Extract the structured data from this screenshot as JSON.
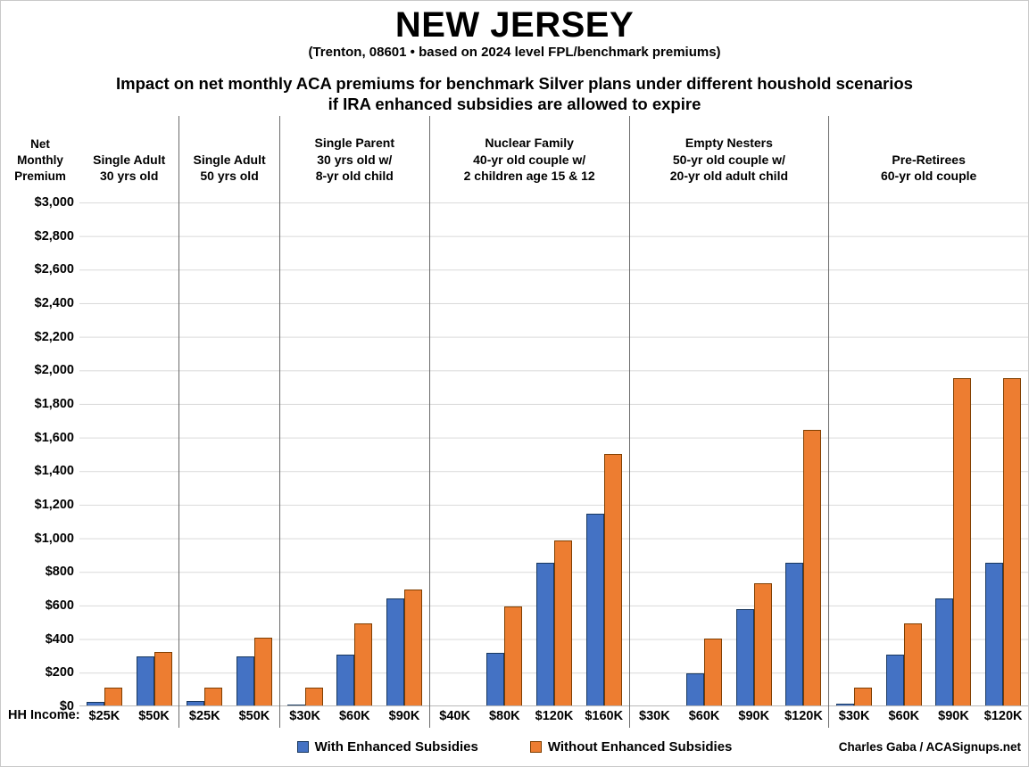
{
  "header": {
    "title": "NEW JERSEY",
    "subtitle": "(Trenton, 08601 • based on 2024 level FPL/benchmark premiums)",
    "heading_line1": "Impact on net monthly ACA premiums for benchmark Silver plans under different houshold scenarios",
    "heading_line2": "if IRA enhanced subsidies are allowed to expire"
  },
  "y_axis": {
    "title_lines": [
      "Net",
      "Monthly",
      "Premium"
    ],
    "min": 0,
    "max": 3000,
    "step": 200,
    "tick_prefix": "$"
  },
  "x_axis": {
    "label": "HH Income:"
  },
  "legend": [
    {
      "label": "With Enhanced Subsidies",
      "color": "#4472C4",
      "border": "#17375E"
    },
    {
      "label": "Without Enhanced Subsidies",
      "color": "#ED7D31",
      "border": "#7F3E00"
    }
  ],
  "credit": "Charles Gaba / ACASignups.net",
  "colors": {
    "bar_with": "#4472C4",
    "bar_without": "#ED7D31",
    "gridline": "#d9d9d9",
    "divider": "#6b6b6b"
  },
  "chart_data": {
    "type": "bar",
    "title": "Impact on net monthly ACA premiums for benchmark Silver plans under different houshold scenarios if IRA enhanced subsidies are allowed to expire",
    "xlabel": "HH Income",
    "ylabel": "Net Monthly Premium",
    "ylim": [
      0,
      3000
    ],
    "ytick_step": 200,
    "grid": true,
    "legend_position": "bottom",
    "series_names": [
      "With Enhanced Subsidies",
      "Without Enhanced Subsidies"
    ],
    "groups": [
      {
        "label_lines": [
          "Single Adult",
          "30 yrs old"
        ],
        "columns": [
          {
            "income": "$25K",
            "with": 20,
            "without": 105
          },
          {
            "income": "$50K",
            "with": 295,
            "without": 320
          }
        ]
      },
      {
        "label_lines": [
          "Single Adult",
          "50 yrs old"
        ],
        "columns": [
          {
            "income": "$25K",
            "with": 25,
            "without": 105
          },
          {
            "income": "$50K",
            "with": 295,
            "without": 405
          }
        ]
      },
      {
        "label_lines": [
          "Single Parent",
          "30 yrs old w/",
          "8-yr old child"
        ],
        "columns": [
          {
            "income": "$30K",
            "with": 5,
            "without": 105
          },
          {
            "income": "$60K",
            "with": 305,
            "without": 490
          },
          {
            "income": "$90K",
            "with": 640,
            "without": 690
          }
        ]
      },
      {
        "label_lines": [
          "Nuclear Family",
          "40-yr old couple w/",
          "2 children age 15 & 12"
        ],
        "columns": [
          {
            "income": "$40K",
            "with": 0,
            "without": 0
          },
          {
            "income": "$80K",
            "with": 315,
            "without": 590
          },
          {
            "income": "$120K",
            "with": 850,
            "without": 980
          },
          {
            "income": "$160K",
            "with": 1140,
            "without": 1500
          }
        ]
      },
      {
        "label_lines": [
          "Empty Nesters",
          "50-yr old couple w/",
          "20-yr old adult child"
        ],
        "columns": [
          {
            "income": "$30K",
            "with": 0,
            "without": 0
          },
          {
            "income": "$60K",
            "with": 190,
            "without": 400
          },
          {
            "income": "$90K",
            "with": 575,
            "without": 730
          },
          {
            "income": "$120K",
            "with": 850,
            "without": 1640
          }
        ]
      },
      {
        "label_lines": [
          "Pre-Retirees",
          "60-yr old couple"
        ],
        "columns": [
          {
            "income": "$30K",
            "with": 10,
            "without": 105
          },
          {
            "income": "$60K",
            "with": 305,
            "without": 490
          },
          {
            "income": "$90K",
            "with": 640,
            "without": 1950
          },
          {
            "income": "$120K",
            "with": 850,
            "without": 1950
          }
        ]
      }
    ]
  }
}
